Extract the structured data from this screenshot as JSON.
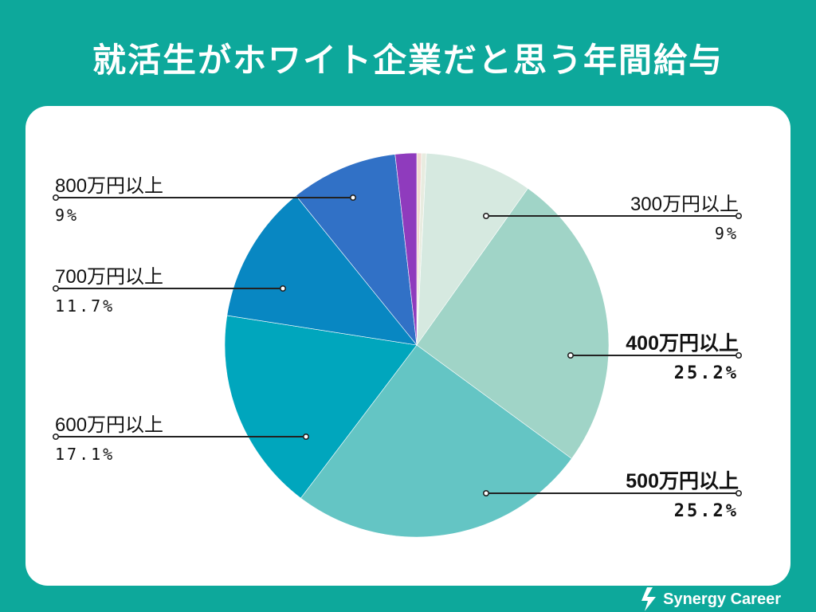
{
  "title": "就活生がホワイト企業だと思う年間給与",
  "brand": "Synergy Career",
  "colors": {
    "background": "#0da89b",
    "card": "#ffffff"
  },
  "chart_data": {
    "type": "pie",
    "title": "就活生がホワイト企業だと思う年間給与",
    "start_angle_deg": 0,
    "direction": "clockwise",
    "slices": [
      {
        "label": "",
        "value": 0.4,
        "color": "#f2d8d0",
        "labeled": false
      },
      {
        "label": "",
        "value": 0.4,
        "color": "#e8ece0",
        "labeled": false
      },
      {
        "label": "300万円以上",
        "pct_text": "9%",
        "value": 9,
        "color": "#d6e9e0",
        "labeled": true,
        "bold": false,
        "side": "right"
      },
      {
        "label": "400万円以上",
        "pct_text": "25.2%",
        "value": 25.2,
        "color": "#a0d4c7",
        "labeled": true,
        "bold": true,
        "side": "right"
      },
      {
        "label": "500万円以上",
        "pct_text": "25.2%",
        "value": 25.2,
        "color": "#64c5c4",
        "labeled": true,
        "bold": true,
        "side": "right"
      },
      {
        "label": "600万円以上",
        "pct_text": "17.1%",
        "value": 17.1,
        "color": "#00a6bd",
        "labeled": true,
        "bold": false,
        "side": "left"
      },
      {
        "label": "700万円以上",
        "pct_text": "11.7%",
        "value": 11.7,
        "color": "#0887c2",
        "labeled": true,
        "bold": false,
        "side": "left"
      },
      {
        "label": "800万円以上",
        "pct_text": "9%",
        "value": 9,
        "color": "#3171c6",
        "labeled": true,
        "bold": false,
        "side": "left"
      },
      {
        "label": "",
        "value": 1.8,
        "color": "#8f3bbd",
        "labeled": false
      }
    ]
  }
}
